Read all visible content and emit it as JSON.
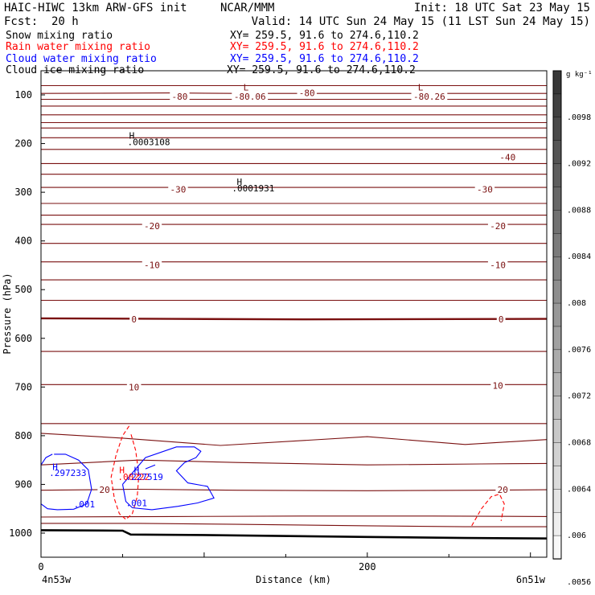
{
  "header": {
    "model": "HAIC-HIWC 13km ARW-GFS init",
    "org": "NCAR/MMM",
    "init": "Init: 18 UTC Sat 23 May 15",
    "fcst_label": "Fcst:",
    "fcst_value": "20 h",
    "valid": "Valid: 14 UTC Sun 24 May 15 (11 LST Sun 24 May 15)",
    "fields": [
      {
        "label": "Snow mixing ratio",
        "xy": "XY= 259.5, 91.6 to 274.6,110.2",
        "color": "#000000"
      },
      {
        "label": "Rain water mixing ratio",
        "xy": "XY= 259.5, 91.6 to 274.6,110.2",
        "color": "#ff0000"
      },
      {
        "label": "Cloud water mixing ratio",
        "xy": "XY= 259.5, 91.6 to 274.6,110.2",
        "color": "#0000ff"
      },
      {
        "label": "Cloud ice mixing ratio",
        "xy": "XY= 259.5, 91.6 to 274.6,110.2",
        "color": "#000000"
      }
    ]
  },
  "chart_data": {
    "type": "contour cross-section",
    "xlabel": "Distance (km)",
    "ylabel": "Pressure (hPa)",
    "xlim": [
      0,
      310
    ],
    "ylim": [
      1050,
      60
    ],
    "x_ticks": [
      0,
      200
    ],
    "y_ticks": [
      100,
      200,
      300,
      400,
      500,
      600,
      700,
      800,
      900,
      1000
    ],
    "x_endpoints": [
      "4n53w",
      "6n51w"
    ],
    "colorbar": {
      "unit": "g kg⁻¹",
      "labels": [
        ".0098",
        ".0092",
        ".0088",
        ".0084",
        ".008",
        ".0076",
        ".0072",
        ".0068",
        ".0064",
        ".006",
        ".0056"
      ],
      "levels": 21
    },
    "temperature_contours": [
      {
        "x": [
          0,
          60,
          100,
          200,
          260,
          310
        ],
        "p": [
          81,
          81,
          81,
          81,
          81,
          81
        ]
      },
      {
        "x": [
          0,
          80,
          120,
          180,
          260,
          310
        ],
        "p": [
          97,
          96,
          97,
          97,
          97,
          97
        ]
      },
      {
        "x": [
          0,
          310
        ],
        "p": [
          109,
          109
        ]
      },
      {
        "x": [
          0,
          310
        ],
        "p": [
          123,
          123
        ]
      },
      {
        "x": [
          0,
          310
        ],
        "p": [
          141,
          141
        ]
      },
      {
        "x": [
          0,
          310
        ],
        "p": [
          157,
          157
        ]
      },
      {
        "x": [
          0,
          310
        ],
        "p": [
          168,
          168
        ]
      },
      {
        "x": [
          0,
          310
        ],
        "p": [
          188,
          188
        ]
      },
      {
        "x": [
          0,
          310
        ],
        "p": [
          212,
          212
        ]
      },
      {
        "x": [
          0,
          310
        ],
        "p": [
          241,
          241
        ]
      },
      {
        "x": [
          0,
          310
        ],
        "p": [
          263,
          263
        ]
      },
      {
        "x": [
          0,
          310
        ],
        "p": [
          290,
          290
        ]
      },
      {
        "x": [
          0,
          310
        ],
        "p": [
          323,
          323
        ]
      },
      {
        "x": [
          0,
          310
        ],
        "p": [
          347,
          347
        ]
      },
      {
        "x": [
          0,
          310
        ],
        "p": [
          366,
          366
        ]
      },
      {
        "x": [
          0,
          310
        ],
        "p": [
          405,
          405
        ]
      },
      {
        "x": [
          0,
          310
        ],
        "p": [
          443,
          443
        ]
      },
      {
        "x": [
          0,
          310
        ],
        "p": [
          480,
          480
        ]
      },
      {
        "x": [
          0,
          310
        ],
        "p": [
          522,
          522
        ]
      },
      {
        "x": [
          0,
          80,
          160,
          310
        ],
        "p": [
          559,
          560,
          561,
          560
        ]
      },
      {
        "x": [
          0,
          310
        ],
        "p": [
          627,
          627
        ]
      },
      {
        "x": [
          0,
          310
        ],
        "p": [
          695,
          695
        ]
      },
      {
        "x": [
          0,
          310
        ],
        "p": [
          775,
          775
        ]
      },
      {
        "x": [
          0,
          50,
          110,
          200,
          260,
          310
        ],
        "p": [
          795,
          805,
          820,
          802,
          818,
          808
        ]
      },
      {
        "x": [
          0,
          60,
          120,
          200,
          270,
          310
        ],
        "p": [
          860,
          850,
          855,
          860,
          858,
          857
        ]
      },
      {
        "x": [
          0,
          60,
          120,
          200,
          270,
          310
        ],
        "p": [
          912,
          910,
          912,
          913,
          912,
          911
        ]
      },
      {
        "x": [
          0,
          80,
          160,
          240,
          310
        ],
        "p": [
          967,
          966,
          965,
          965,
          966
        ]
      },
      {
        "x": [
          0,
          60,
          120,
          200,
          260,
          310
        ],
        "p": [
          980,
          980,
          982,
          985,
          987,
          987
        ]
      }
    ],
    "contour_labels": [
      {
        "text": "-80",
        "x": 85,
        "p": 103
      },
      {
        "text": "-80.06",
        "x": 128,
        "p": 103
      },
      {
        "text": "-80",
        "x": 163,
        "p": 96
      },
      {
        "text": "-80.26",
        "x": 238,
        "p": 103
      },
      {
        "text": "-40",
        "x": 286,
        "p": 228
      },
      {
        "text": "-30",
        "x": 84,
        "p": 294
      },
      {
        "text": "-30",
        "x": 272,
        "p": 294
      },
      {
        "text": "-20",
        "x": 68,
        "p": 369
      },
      {
        "text": "-20",
        "x": 280,
        "p": 369
      },
      {
        "text": "-10",
        "x": 68,
        "p": 449
      },
      {
        "text": "-10",
        "x": 280,
        "p": 449
      },
      {
        "text": "0",
        "x": 57,
        "p": 561
      },
      {
        "text": "0",
        "x": 282,
        "p": 561
      },
      {
        "text": "10",
        "x": 57,
        "p": 700
      },
      {
        "text": "10",
        "x": 280,
        "p": 697
      },
      {
        "text": "20",
        "x": 39,
        "p": 911
      },
      {
        "text": "20",
        "x": 283,
        "p": 911
      }
    ],
    "surface": {
      "x": [
        0,
        50,
        55,
        100,
        200,
        260,
        310
      ],
      "p": [
        994,
        995,
        1003,
        1004,
        1008,
        1010,
        1011
      ]
    },
    "rain_water_contours": [
      {
        "x": [
          54,
          50,
          46,
          43,
          45,
          48,
          52,
          56,
          59,
          60,
          58,
          55
        ],
        "p": [
          780,
          800,
          840,
          885,
          930,
          960,
          972,
          960,
          925,
          880,
          830,
          795
        ]
      },
      {
        "x": [
          264,
          270,
          276,
          281,
          284,
          282
        ],
        "p": [
          985,
          950,
          925,
          920,
          940,
          975
        ]
      }
    ],
    "cloud_water_contours": [
      {
        "x": [
          7,
          3,
          0,
          0,
          4,
          10,
          20,
          28,
          31,
          29,
          23,
          15,
          8
        ],
        "p": [
          838,
          845,
          860,
          940,
          950,
          952,
          951,
          940,
          910,
          870,
          850,
          838,
          838
        ]
      },
      {
        "x": [
          50,
          64,
          83,
          94,
          98,
          95,
          88,
          83,
          90,
          102,
          106,
          96,
          84,
          68,
          56,
          52,
          50
        ],
        "p": [
          900,
          845,
          823,
          823,
          832,
          845,
          855,
          872,
          897,
          904,
          928,
          938,
          945,
          952,
          948,
          935,
          900
        ]
      },
      {
        "x": [
          64,
          70
        ],
        "p": [
          868,
          860
        ]
      }
    ],
    "field_labels": [
      {
        "text": "H",
        "x": 54,
        "p": 190,
        "color": "#000000"
      },
      {
        "text": ".0003108",
        "x": 53,
        "p": 203,
        "color": "#000000"
      },
      {
        "text": "H",
        "x": 120,
        "p": 285,
        "color": "#000000"
      },
      {
        "text": ".0001931",
        "x": 117,
        "p": 298,
        "color": "#000000"
      },
      {
        "text": "L",
        "x": 124,
        "p": 91,
        "color": "#7a1010"
      },
      {
        "text": "L",
        "x": 231,
        "p": 91,
        "color": "#7a1010"
      },
      {
        "text": "H",
        "x": 7,
        "p": 870,
        "color": "#0000ff"
      },
      {
        "text": ".297233",
        "x": 5,
        "p": 883,
        "color": "#0000ff"
      },
      {
        "text": ".001",
        "x": 20,
        "p": 947,
        "color": "#0000ff"
      },
      {
        "text": "H",
        "x": 48,
        "p": 877,
        "color": "#ff0000"
      },
      {
        "text": ".00222",
        "x": 47,
        "p": 891,
        "color": "#ff0000"
      },
      {
        "text": "H",
        "x": 57,
        "p": 877,
        "color": "#0000ff"
      },
      {
        "text": ".227519",
        "x": 52,
        "p": 891,
        "color": "#0000ff"
      },
      {
        "text": ".001",
        "x": 52,
        "p": 945,
        "color": "#0000ff"
      }
    ],
    "colors": {
      "temperature": "#7a1010",
      "rain_water": "#ff0000",
      "cloud_water": "#0000ff",
      "snow": "#000000"
    }
  }
}
